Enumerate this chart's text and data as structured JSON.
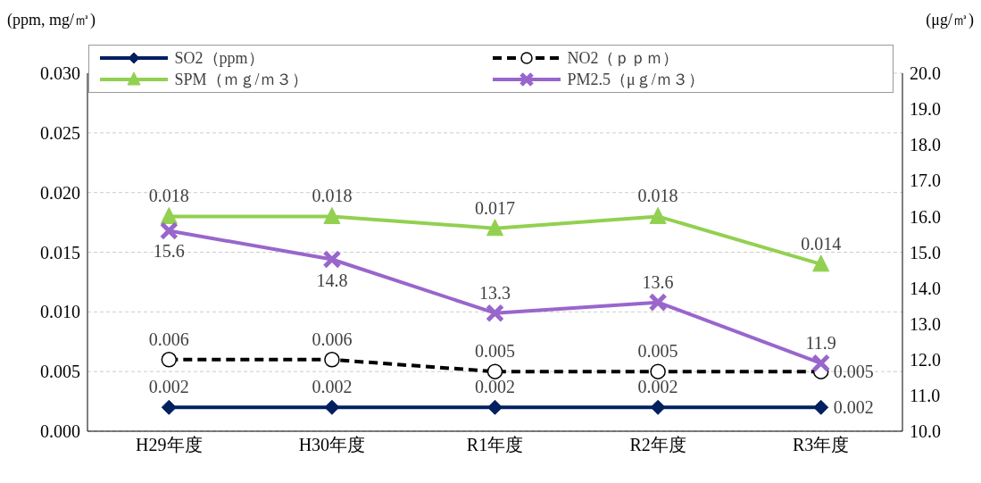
{
  "chart_data": {
    "type": "line",
    "ylabel": "(ppm, mg/㎥)",
    "y2label": "(μg/㎥)",
    "categories": [
      "H29年度",
      "H30年度",
      "R1年度",
      "R2年度",
      "R3年度"
    ],
    "series": [
      {
        "name": "SO2（ppm）",
        "color": "#002060",
        "values": [
          0.002,
          0.002,
          0.002,
          0.002,
          0.002
        ],
        "marker": "diamond",
        "line_style": "solid"
      },
      {
        "name": "NO2（ｐｐｍ）",
        "color": "#000000",
        "values": [
          0.006,
          0.006,
          0.005,
          0.005,
          0.005
        ],
        "marker": "circle",
        "line_style": "dashed"
      },
      {
        "name": "SPM（ｍｇ/ｍ３）",
        "color": "#92d050",
        "values": [
          0.018,
          0.018,
          0.017,
          0.018,
          0.014
        ],
        "marker": "triangle",
        "line_style": "solid"
      },
      {
        "name": "PM2.5（μｇ/ｍ３）",
        "color": "#9966cc",
        "values": [
          15.6,
          14.8,
          13.3,
          13.6,
          11.9
        ],
        "marker": "cross",
        "line_style": "solid",
        "axis": "y2"
      }
    ],
    "ylim": [
      0,
      0.03
    ],
    "yticks": [
      {
        "value": 0,
        "label": "0.000"
      },
      {
        "value": 0.005,
        "label": "0.005"
      },
      {
        "value": 0.01,
        "label": "0.010"
      },
      {
        "value": 0.015,
        "label": "0.015"
      },
      {
        "value": 0.02,
        "label": "0.020"
      },
      {
        "value": 0.025,
        "label": "0.025"
      },
      {
        "value": 0.03,
        "label": "0.030"
      }
    ],
    "y2lim": [
      10,
      20
    ],
    "y2ticks": [
      {
        "value": 10,
        "label": "10.0"
      },
      {
        "value": 11,
        "label": "11.0"
      },
      {
        "value": 12,
        "label": "12.0"
      },
      {
        "value": 13,
        "label": "13.0"
      },
      {
        "value": 14,
        "label": "14.0"
      },
      {
        "value": 15,
        "label": "15.0"
      },
      {
        "value": 16,
        "label": "16.0"
      },
      {
        "value": 17,
        "label": "17.0"
      },
      {
        "value": 18,
        "label": "18.0"
      },
      {
        "value": 19,
        "label": "19.0"
      },
      {
        "value": 20,
        "label": "20.0"
      }
    ],
    "grid": "y",
    "legend": "top",
    "data_labels": true
  }
}
